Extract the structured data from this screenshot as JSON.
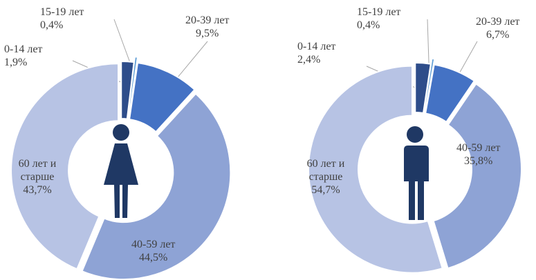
{
  "chart_data": [
    {
      "type": "pie",
      "categories": [
        "0-14 лет",
        "15-19 лет",
        "20-39 лет",
        "40-59 лет",
        "60 лет и старше"
      ],
      "values": [
        1.9,
        0.4,
        9.5,
        44.5,
        43.7
      ],
      "value_labels": [
        "1,9%",
        "0,4%",
        "9,5%",
        "44,5%",
        "43,7%"
      ],
      "colors": [
        "#2e4d8a",
        "#5b9bd5",
        "#4472c4",
        "#8ea3d5",
        "#b7c3e4"
      ]
    },
    {
      "type": "pie",
      "categories": [
        "0-14 лет",
        "15-19 лет",
        "20-39 лет",
        "40-59 лет",
        "60 лет и старше"
      ],
      "values": [
        2.4,
        0.4,
        6.7,
        35.8,
        54.7
      ],
      "value_labels": [
        "2,4%",
        "0,4%",
        "6,7%",
        "35,8%",
        "54,7%"
      ],
      "colors": [
        "#2e4d8a",
        "#5b9bd5",
        "#4472c4",
        "#8ea3d5",
        "#b7c3e4"
      ]
    }
  ]
}
